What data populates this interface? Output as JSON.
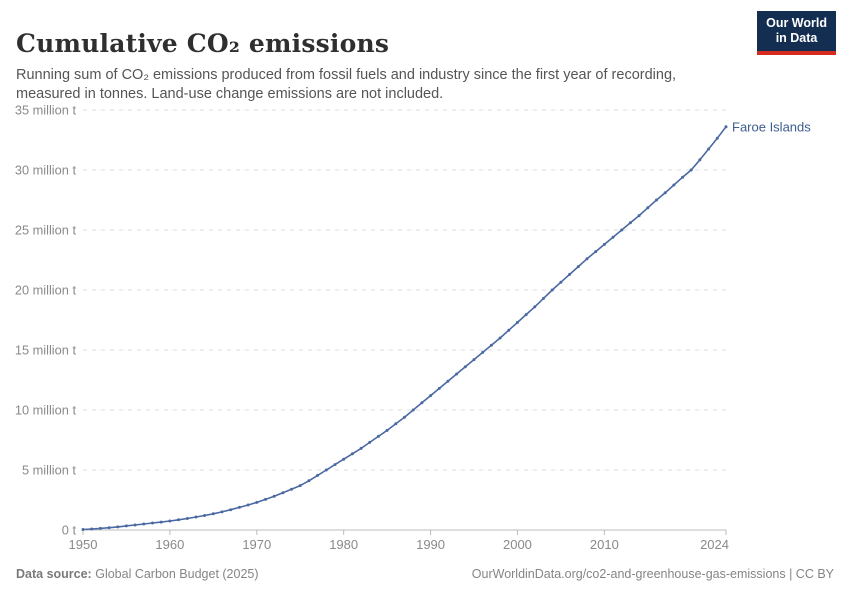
{
  "header": {
    "title": "Cumulative CO₂ emissions",
    "subtitle": "Running sum of CO₂ emissions produced from fossil fuels and industry since the first year of recording, measured in tonnes. Land-use change emissions are not included.",
    "logo": {
      "line1": "Our World",
      "line2": "in Data"
    }
  },
  "footer": {
    "source_label": "Data source:",
    "source_value": "Global Carbon Budget (2025)",
    "citation": "OurWorldinData.org/co2-and-greenhouse-gas-emissions | CC BY"
  },
  "chart_data": {
    "type": "line",
    "title": "Cumulative CO₂ emissions",
    "entity_label": "Faroe Islands",
    "unit": "tonnes",
    "x": {
      "start_year": 1950,
      "end_year": 2024
    },
    "values_million_t": [
      0.04,
      0.08,
      0.13,
      0.19,
      0.26,
      0.34,
      0.42,
      0.5,
      0.58,
      0.66,
      0.75,
      0.85,
      0.96,
      1.08,
      1.21,
      1.35,
      1.51,
      1.69,
      1.88,
      2.08,
      2.3,
      2.55,
      2.82,
      3.11,
      3.4,
      3.7,
      4.1,
      4.55,
      5.0,
      5.45,
      5.9,
      6.35,
      6.8,
      7.3,
      7.8,
      8.3,
      8.85,
      9.4,
      10.0,
      10.6,
      11.2,
      11.8,
      12.4,
      13.0,
      13.6,
      14.2,
      14.8,
      15.4,
      16.0,
      16.65,
      17.3,
      17.95,
      18.6,
      19.3,
      20.0,
      20.65,
      21.3,
      21.95,
      22.6,
      23.2,
      23.8,
      24.4,
      25.0,
      25.6,
      26.2,
      26.85,
      27.5,
      28.1,
      28.75,
      29.4,
      30.0,
      30.85,
      31.75,
      32.65,
      33.6
    ],
    "ylim": [
      0,
      35
    ],
    "yticks": [
      0,
      5,
      10,
      15,
      20,
      25,
      30,
      35
    ],
    "ytick_labels": [
      "0 t",
      "5 million t",
      "10 million t",
      "15 million t",
      "20 million t",
      "25 million t",
      "30 million t",
      "35 million t"
    ],
    "xticks": [
      1950,
      1960,
      1970,
      1980,
      1990,
      2000,
      2010,
      2024
    ],
    "grid": "horizontal-dashed",
    "legend_position": "end-of-line",
    "colors": {
      "line": "#4a69a2",
      "marker": "#4a69a2",
      "entity_label": "#3d5c8f",
      "grid": "#dcdcdc",
      "axis": "#bcbcbc",
      "tick_text": "#8a8a8a"
    }
  }
}
